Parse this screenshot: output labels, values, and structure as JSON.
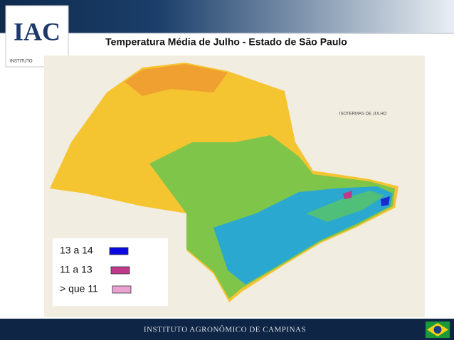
{
  "header": {
    "logo": "IAC",
    "logo_caption": "INSTITUTO",
    "title": "Temperatura Média de Julho - Estado de São Paulo"
  },
  "map": {
    "inset_title": "ISOTERMAS DE JULHO"
  },
  "legend": {
    "items": [
      {
        "label": "13 a 14",
        "color": "#0a0ae0"
      },
      {
        "label": "11 a 13",
        "color": "#c0388a"
      },
      {
        "label": "> que 11",
        "color": "#eaa2d2"
      }
    ]
  },
  "footer": {
    "text": "INSTITUTO AGRONÔMICO DE CAMPINAS"
  }
}
